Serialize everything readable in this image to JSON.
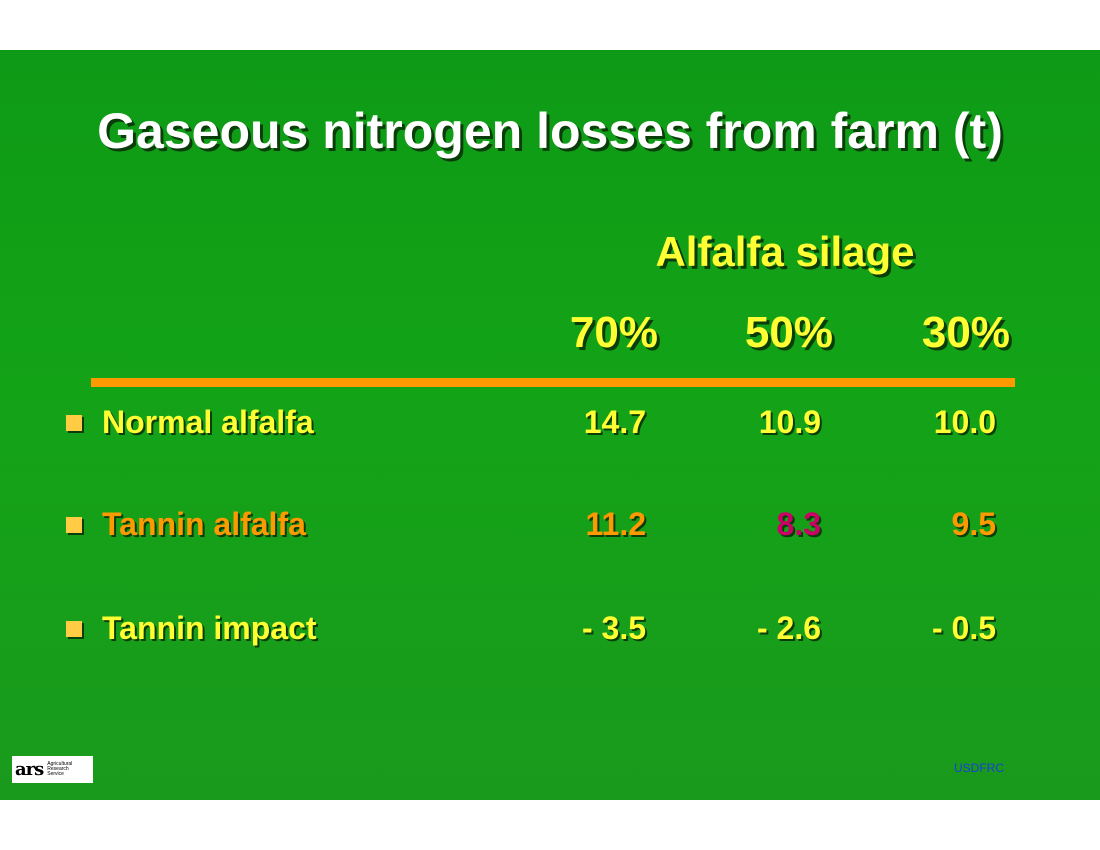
{
  "slide": {
    "title": "Gaseous nitrogen losses from farm (t)",
    "group_header": "Alfalfa silage",
    "columns": [
      "70%",
      "50%",
      "30%"
    ],
    "rows": [
      {
        "label": "Normal alfalfa",
        "values": [
          "14.7",
          "10.9",
          "10.0"
        ]
      },
      {
        "label": "Tannin alfalfa",
        "values": [
          "11.2",
          "8.3",
          "9.5"
        ]
      },
      {
        "label": "Tannin impact",
        "values": [
          "- 3.5",
          "- 2.6",
          "- 0.5"
        ]
      }
    ],
    "logo": {
      "mark": "ars",
      "lines": [
        "Agricultural",
        "Research",
        "Service"
      ]
    },
    "footer": "USDFRC"
  },
  "colors": {
    "background": "#13a317",
    "title": "#ffffff",
    "header": "#ffff33",
    "rule": "#ff9900",
    "bullet": "#ffcc44",
    "row_normal": "#ffff33",
    "row_tannin": "#ff9900",
    "highlight_value": "#cc0066",
    "footer": "#1a3fd6"
  }
}
